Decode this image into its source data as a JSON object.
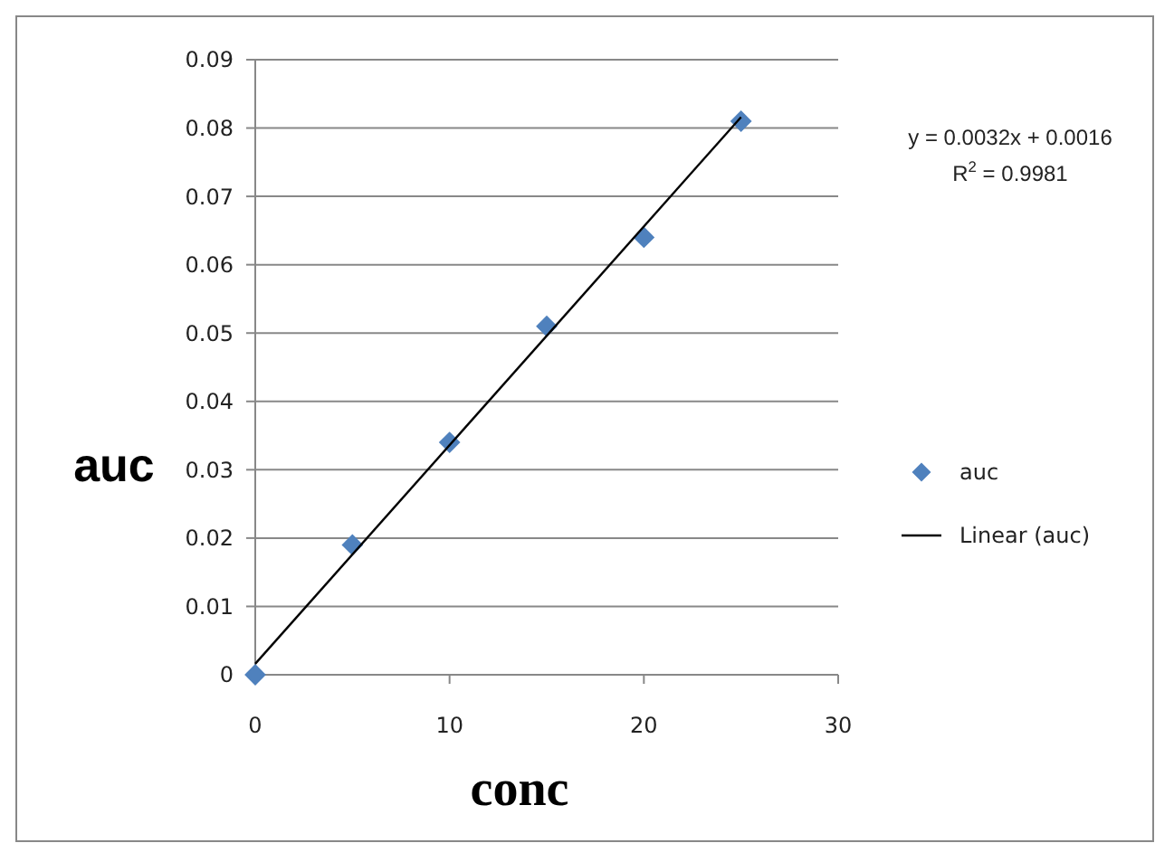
{
  "chart_data": {
    "type": "scatter",
    "xlabel": "conc",
    "ylabel": "auc",
    "x": [
      0,
      5,
      10,
      15,
      20,
      25
    ],
    "series": [
      {
        "name": "auc",
        "color": "#4f81bd",
        "values": [
          0,
          0.019,
          0.034,
          0.051,
          0.064,
          0.081
        ],
        "marker": "diamond"
      },
      {
        "name": "Linear (auc)",
        "type": "line",
        "color": "#000000",
        "x": [
          0,
          25
        ],
        "values": [
          0.0016,
          0.0816
        ],
        "marker": "none",
        "line_style": "solid"
      }
    ],
    "xlim": [
      0,
      30
    ],
    "xticks": [
      0,
      10,
      20,
      30
    ],
    "ylim": [
      0,
      0.09
    ],
    "yticks": [
      0,
      0.01,
      0.02,
      0.03,
      0.04,
      0.05,
      0.06,
      0.07,
      0.08,
      0.09
    ],
    "grid": "y",
    "legend": "right",
    "annotations": [
      "y = 0.0032x + 0.0016",
      "R$^{2}$ = 0.9981"
    ]
  }
}
